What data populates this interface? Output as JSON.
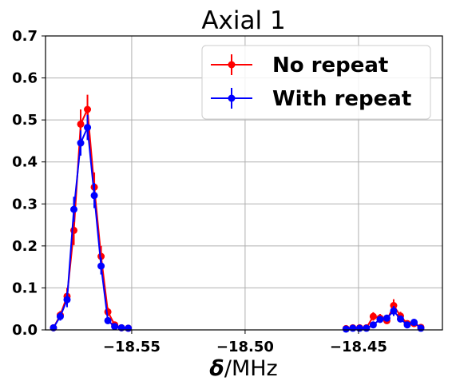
{
  "chart_data": {
    "type": "line",
    "title": "Axial 1",
    "xlabel_symbol": "δ",
    "xlabel_unit": "/MHz",
    "ylabel": "",
    "xlim": [
      -18.588,
      -18.413
    ],
    "ylim": [
      0,
      0.7
    ],
    "xticks": [
      -18.55,
      -18.5,
      -18.45
    ],
    "xtick_labels": [
      "−18.55",
      "−18.50",
      "−18.45"
    ],
    "yticks": [
      0.0,
      0.1,
      0.2,
      0.3,
      0.4,
      0.5,
      0.6,
      0.7
    ],
    "ytick_labels": [
      "0.0",
      "0.1",
      "0.2",
      "0.3",
      "0.4",
      "0.5",
      "0.6",
      "0.7"
    ],
    "grid": true,
    "legend_position": "top-right",
    "series": [
      {
        "name": "No repeat",
        "color": "#ff0000",
        "groups": [
          {
            "x": [
              -18.5845,
              -18.5815,
              -18.5785,
              -18.5755,
              -18.5725,
              -18.5695,
              -18.5665,
              -18.5635,
              -18.5605,
              -18.5575,
              -18.5545,
              -18.5515
            ],
            "y": [
              0.005,
              0.035,
              0.08,
              0.237,
              0.49,
              0.525,
              0.34,
              0.175,
              0.043,
              0.012,
              0.005,
              0.004
            ],
            "err": [
              0.003,
              0.01,
              0.02,
              0.035,
              0.035,
              0.035,
              0.035,
              0.025,
              0.01,
              0.005,
              0.003,
              0.002
            ]
          },
          {
            "x": [
              -18.4555,
              -18.4525,
              -18.4495,
              -18.4465,
              -18.4435,
              -18.4405,
              -18.4375,
              -18.4345,
              -18.4315,
              -18.4285,
              -18.4255,
              -18.4225
            ],
            "y": [
              0.003,
              0.005,
              0.005,
              0.005,
              0.032,
              0.028,
              0.022,
              0.058,
              0.033,
              0.015,
              0.015,
              0.006
            ],
            "err": [
              0.002,
              0.003,
              0.003,
              0.003,
              0.01,
              0.01,
              0.008,
              0.015,
              0.01,
              0.006,
              0.006,
              0.003
            ]
          }
        ]
      },
      {
        "name": "With repeat",
        "color": "#0000ff",
        "groups": [
          {
            "x": [
              -18.5845,
              -18.5815,
              -18.5785,
              -18.5755,
              -18.5725,
              -18.5695,
              -18.5665,
              -18.5635,
              -18.5605,
              -18.5575,
              -18.5545,
              -18.5515
            ],
            "y": [
              0.005,
              0.032,
              0.072,
              0.287,
              0.445,
              0.482,
              0.32,
              0.152,
              0.022,
              0.008,
              0.005,
              0.004
            ],
            "err": [
              0.003,
              0.01,
              0.018,
              0.03,
              0.03,
              0.03,
              0.03,
              0.02,
              0.008,
              0.004,
              0.003,
              0.002
            ]
          },
          {
            "x": [
              -18.4555,
              -18.4525,
              -18.4495,
              -18.4465,
              -18.4435,
              -18.4405,
              -18.4375,
              -18.4345,
              -18.4315,
              -18.4285,
              -18.4255,
              -18.4225
            ],
            "y": [
              0.002,
              0.004,
              0.004,
              0.004,
              0.012,
              0.025,
              0.028,
              0.045,
              0.026,
              0.012,
              0.018,
              0.004
            ],
            "err": [
              0.002,
              0.002,
              0.002,
              0.002,
              0.006,
              0.008,
              0.008,
              0.012,
              0.008,
              0.005,
              0.006,
              0.002
            ]
          }
        ]
      }
    ]
  }
}
